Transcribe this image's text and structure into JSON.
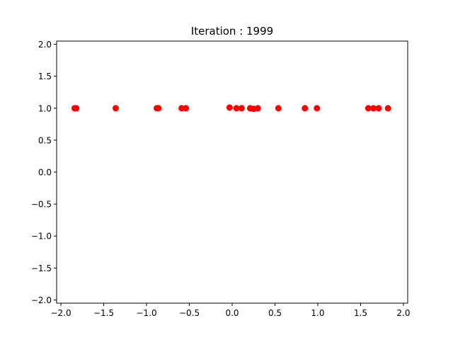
{
  "chart_data": {
    "type": "scatter",
    "title": "Iteration : 1999",
    "xlabel": "",
    "ylabel": "",
    "xlim": [
      -2.05,
      2.05
    ],
    "ylim": [
      -2.05,
      2.05
    ],
    "grid": false,
    "x_ticks": [
      "−2.0",
      "−1.5",
      "−1.0",
      "−0.5",
      "0.0",
      "0.5",
      "1.0",
      "1.5",
      "2.0"
    ],
    "x_tick_values": [
      -2.0,
      -1.5,
      -1.0,
      -0.5,
      0.0,
      0.5,
      1.0,
      1.5,
      2.0
    ],
    "y_ticks": [
      "2.0",
      "1.5",
      "1.0",
      "0.5",
      "0.0",
      "−0.5",
      "−1.0",
      "−1.5",
      "−2.0"
    ],
    "y_tick_values": [
      2.0,
      1.5,
      1.0,
      0.5,
      0.0,
      -0.5,
      -1.0,
      -1.5,
      -2.0
    ],
    "marker_color": "#ff0000",
    "points": [
      {
        "x": -1.84,
        "y": 1.0
      },
      {
        "x": -1.82,
        "y": 1.0
      },
      {
        "x": -1.36,
        "y": 1.0
      },
      {
        "x": -0.88,
        "y": 1.0
      },
      {
        "x": -0.86,
        "y": 1.0
      },
      {
        "x": -0.59,
        "y": 1.0
      },
      {
        "x": -0.54,
        "y": 1.0
      },
      {
        "x": -0.03,
        "y": 1.01
      },
      {
        "x": 0.05,
        "y": 1.0
      },
      {
        "x": 0.11,
        "y": 1.0
      },
      {
        "x": 0.21,
        "y": 1.0
      },
      {
        "x": 0.25,
        "y": 0.99
      },
      {
        "x": 0.3,
        "y": 1.0
      },
      {
        "x": 0.54,
        "y": 1.0
      },
      {
        "x": 0.85,
        "y": 1.0
      },
      {
        "x": 0.99,
        "y": 1.0
      },
      {
        "x": 1.59,
        "y": 1.0
      },
      {
        "x": 1.65,
        "y": 1.0
      },
      {
        "x": 1.71,
        "y": 1.0
      },
      {
        "x": 1.82,
        "y": 1.0
      }
    ]
  }
}
